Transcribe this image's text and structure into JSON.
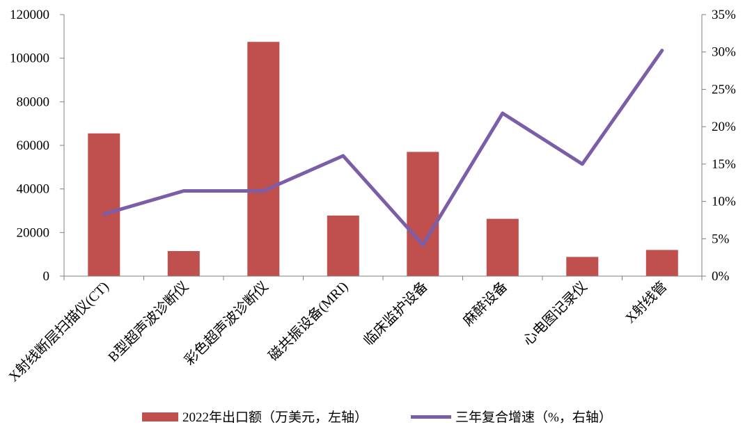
{
  "chart_data": {
    "type": "bar",
    "categories": [
      "X射线断层扫描仪(CT)",
      "B型超声波诊断仪",
      "彩色超声波诊断仪",
      "磁共振设备(MRI)",
      "临床监护设备",
      "麻醉设备",
      "心电图记录仪",
      "X射线管"
    ],
    "series": [
      {
        "name": "2022年出口额（万美元，左轴）",
        "type": "bar",
        "axis": "left",
        "color": "#c0504d",
        "values": [
          65500,
          11500,
          107500,
          27800,
          57000,
          26300,
          8800,
          12000
        ]
      },
      {
        "name": "三年复合增速（%，右轴）",
        "type": "line",
        "axis": "right",
        "color": "#7b5ea7",
        "values": [
          8.3,
          11.4,
          11.4,
          16.1,
          4.2,
          21.8,
          15.0,
          30.2
        ]
      }
    ],
    "y_left": {
      "ylim": [
        0,
        120000
      ],
      "ticks": [
        "0",
        "20000",
        "40000",
        "60000",
        "80000",
        "100000",
        "120000"
      ]
    },
    "y_right": {
      "ylim": [
        0,
        35
      ],
      "ticks": [
        "0%",
        "5%",
        "10%",
        "15%",
        "20%",
        "25%",
        "30%",
        "35%"
      ]
    },
    "legend_position": "bottom",
    "grid": false
  }
}
